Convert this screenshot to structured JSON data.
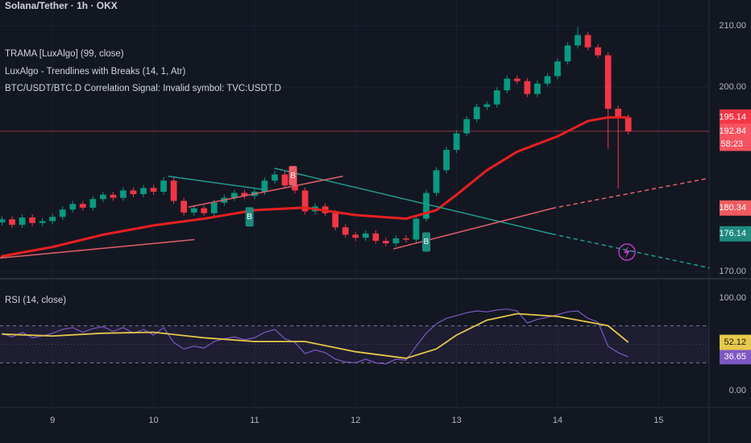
{
  "chart_data": [
    {
      "type": "candlestick",
      "title": "Solana/Tether · 1h · OKX",
      "indicators": [
        "TRAMA [LuxAlgo] (99, close)",
        "LuxAlgo - Trendlines with Breaks (14, 1, Atr)",
        "BTC/USDT/BTC.D Correlation Signal: Invalid symbol: TVC:USDT.D"
      ],
      "x": [
        8.5,
        8.6,
        8.7,
        8.8,
        8.9,
        9.0,
        9.1,
        9.2,
        9.3,
        9.4,
        9.5,
        9.6,
        9.7,
        9.8,
        9.9,
        10.0,
        10.1,
        10.2,
        10.3,
        10.4,
        10.5,
        10.6,
        10.7,
        10.8,
        10.9,
        11.0,
        11.1,
        11.2,
        11.3,
        11.4,
        11.5,
        11.6,
        11.7,
        11.8,
        11.9,
        12.0,
        12.1,
        12.2,
        12.3,
        12.4,
        12.5,
        12.6,
        12.7,
        12.8,
        12.9,
        13.0,
        13.1,
        13.2,
        13.3,
        13.4,
        13.5,
        13.6,
        13.7,
        13.8,
        13.9,
        14.0,
        14.1,
        14.2,
        14.3,
        14.4,
        14.5,
        14.6,
        14.7
      ],
      "open": [
        178.0,
        178.5,
        177.6,
        178.8,
        177.9,
        178.2,
        178.9,
        180.1,
        181.0,
        180.4,
        181.8,
        182.5,
        182.0,
        183.2,
        182.6,
        183.6,
        183.0,
        184.8,
        181.5,
        179.6,
        180.3,
        179.5,
        181.2,
        182.0,
        182.8,
        182.3,
        183.0,
        184.8,
        185.8,
        184.0,
        183.2,
        179.8,
        180.6,
        179.5,
        177.2,
        176.0,
        175.5,
        176.2,
        175.0,
        174.6,
        175.4,
        175.2,
        178.6,
        182.8,
        186.5,
        189.8,
        192.5,
        194.8,
        196.8,
        197.2,
        199.5,
        201.4,
        201.0,
        198.9,
        200.6,
        201.8,
        204.2,
        206.8,
        208.5,
        206.5,
        205.2,
        196.5,
        195.1
      ],
      "high": [
        179.0,
        179.0,
        179.3,
        179.3,
        178.7,
        179.4,
        180.6,
        181.5,
        181.5,
        182.3,
        183.0,
        183.0,
        183.7,
        183.7,
        184.1,
        184.1,
        185.4,
        185.3,
        182.0,
        180.8,
        180.8,
        181.7,
        182.5,
        183.3,
        183.3,
        183.5,
        185.3,
        186.4,
        186.3,
        184.5,
        183.7,
        181.1,
        181.1,
        180.0,
        177.7,
        176.5,
        176.7,
        176.7,
        175.5,
        175.9,
        175.9,
        179.1,
        183.3,
        187.0,
        190.3,
        193.0,
        195.3,
        197.3,
        197.7,
        200.0,
        201.9,
        201.9,
        201.5,
        201.1,
        202.3,
        204.7,
        207.3,
        209.8,
        209.0,
        207.0,
        205.7,
        197.0,
        195.6
      ],
      "low": [
        177.5,
        177.1,
        177.1,
        177.4,
        177.4,
        177.7,
        178.4,
        179.6,
        179.9,
        179.9,
        181.3,
        181.5,
        181.5,
        182.1,
        182.1,
        182.5,
        182.5,
        181.0,
        179.1,
        179.1,
        179.0,
        179.0,
        180.7,
        181.5,
        181.8,
        181.8,
        182.5,
        184.3,
        183.5,
        182.7,
        179.3,
        179.3,
        179.0,
        176.7,
        175.5,
        175.0,
        175.0,
        174.5,
        174.1,
        174.1,
        174.7,
        174.7,
        178.1,
        182.3,
        186.0,
        189.3,
        192.0,
        194.3,
        196.3,
        196.7,
        199.0,
        200.5,
        198.4,
        198.4,
        200.1,
        201.3,
        203.7,
        206.3,
        206.0,
        204.7,
        190.0,
        183.5,
        192.3
      ],
      "close": [
        178.5,
        177.6,
        178.8,
        177.9,
        178.2,
        178.9,
        180.1,
        181.0,
        180.4,
        181.8,
        182.5,
        182.0,
        183.2,
        182.6,
        183.6,
        183.0,
        184.8,
        181.5,
        179.6,
        180.3,
        179.5,
        181.2,
        182.0,
        182.8,
        182.3,
        183.0,
        184.8,
        185.8,
        184.0,
        183.2,
        179.8,
        180.6,
        179.5,
        177.2,
        176.0,
        175.5,
        176.2,
        175.0,
        174.6,
        175.4,
        175.2,
        178.6,
        182.8,
        186.5,
        189.8,
        192.5,
        194.8,
        196.8,
        197.2,
        199.5,
        201.4,
        201.0,
        198.9,
        200.6,
        201.8,
        204.2,
        206.8,
        208.5,
        206.5,
        205.2,
        196.5,
        195.1,
        192.8
      ],
      "up_color": "#089981",
      "down_color": "#f23645",
      "lines": [
        {
          "x": [
            8.5,
            9.0,
            9.5,
            10.0,
            10.5,
            11.0,
            11.5,
            12.0,
            12.5,
            12.8,
            13.0,
            13.3,
            13.6,
            14.0,
            14.3,
            14.5,
            14.7
          ],
          "values": [
            172.5,
            174.0,
            176.0,
            177.5,
            178.6,
            180.0,
            180.4,
            179.2,
            178.6,
            180.0,
            182.5,
            186.5,
            189.5,
            192.0,
            194.5,
            195.1,
            195.1
          ],
          "color": "#e8201f",
          "width": 3,
          "dashed": false
        },
        {
          "x": [
            10.15,
            11.12
          ],
          "values": [
            185.5,
            183.3
          ],
          "color": "#1f9c8c",
          "width": 1.5,
          "dashed": false
        },
        {
          "x": [
            11.2,
            13.95
          ],
          "values": [
            186.8,
            176.1
          ],
          "color": "#1f9c8c",
          "width": 1.5,
          "dashed": false
        },
        {
          "x": [
            13.95,
            15.5
          ],
          "values": [
            176.1,
            170.6
          ],
          "color": "#1f9c8c",
          "width": 1.5,
          "dashed": true
        },
        {
          "x": [
            8.48,
            10.4
          ],
          "values": [
            172.2,
            175.2
          ],
          "color": "#e0606a",
          "width": 1.5,
          "dashed": false
        },
        {
          "x": [
            10.35,
            11.87
          ],
          "values": [
            180.5,
            185.5
          ],
          "color": "#e0606a",
          "width": 1.5,
          "dashed": false
        },
        {
          "x": [
            12.38,
            13.95
          ],
          "values": [
            173.7,
            180.3
          ],
          "color": "#e0606a",
          "width": 1.5,
          "dashed": false
        },
        {
          "x": [
            13.95,
            15.5
          ],
          "values": [
            180.3,
            185.2
          ],
          "color": "#e0606a",
          "width": 1.5,
          "dashed": true
        }
      ],
      "break_labels": [
        {
          "x": 10.95,
          "value": 178.9,
          "text": "B",
          "color": "#1f8a7e"
        },
        {
          "x": 11.38,
          "value": 185.6,
          "text": "B",
          "color": "#f05a5f"
        },
        {
          "x": 12.7,
          "value": 174.8,
          "text": "B",
          "color": "#1f8a7e"
        }
      ],
      "price_labels": [
        {
          "value": 195.14,
          "label": "195.14",
          "color": "#f23645",
          "text_color": "#ffffff"
        },
        {
          "value": 192.84,
          "label": "192.84",
          "countdown": "58:23",
          "color": "#f7525f",
          "text_color": "#ffffff",
          "price_line": true
        },
        {
          "value": 180.34,
          "label": "180.34",
          "color": "#f05a5f",
          "text_color": "#ffffff"
        },
        {
          "value": 176.14,
          "label": "176.14",
          "color": "#1f8a7e",
          "text_color": "#ffffff"
        }
      ],
      "xlim": [
        8.48,
        15.5
      ],
      "ylim": [
        169.1,
        214.2
      ],
      "xticks": [
        9,
        10,
        11,
        12,
        13,
        14,
        15
      ],
      "yticks": [
        {
          "value": 170,
          "label": "170.00"
        },
        {
          "value": 200,
          "label": "200.00"
        },
        {
          "value": 210,
          "label": "210.00"
        }
      ],
      "grid": true
    },
    {
      "type": "rsi",
      "title": "RSI (14, close)",
      "x": [
        8.5,
        8.6,
        8.7,
        8.8,
        8.9,
        9.0,
        9.1,
        9.2,
        9.3,
        9.4,
        9.5,
        9.6,
        9.7,
        9.8,
        9.9,
        10.0,
        10.1,
        10.2,
        10.3,
        10.4,
        10.5,
        10.6,
        10.7,
        10.8,
        10.9,
        11.0,
        11.1,
        11.2,
        11.3,
        11.4,
        11.5,
        11.6,
        11.7,
        11.8,
        11.9,
        12.0,
        12.1,
        12.2,
        12.3,
        12.4,
        12.5,
        12.6,
        12.7,
        12.8,
        12.9,
        13.0,
        13.1,
        13.2,
        13.3,
        13.4,
        13.5,
        13.6,
        13.7,
        13.8,
        13.9,
        14.0,
        14.1,
        14.2,
        14.3,
        14.4,
        14.5,
        14.6,
        14.7
      ],
      "series": [
        {
          "values": [
            62,
            58,
            63,
            57,
            59,
            62,
            66,
            68,
            63,
            67,
            69,
            64,
            68,
            62,
            66,
            60,
            68,
            52,
            45,
            48,
            46,
            53,
            56,
            58,
            55,
            57,
            63,
            66,
            56,
            52,
            40,
            44,
            41,
            34,
            31,
            30,
            34,
            30,
            29,
            34,
            33,
            48,
            62,
            72,
            78,
            81,
            84,
            86,
            85,
            87,
            88,
            86,
            73,
            77,
            79,
            82,
            85,
            86,
            78,
            74,
            48,
            41,
            36.65
          ],
          "color": "#7e57c2",
          "last_label": "36.65"
        }
      ],
      "ma": {
        "x": [
          8.5,
          9.0,
          9.5,
          10.0,
          10.5,
          11.0,
          11.5,
          12.0,
          12.5,
          12.8,
          13.0,
          13.3,
          13.6,
          14.0,
          14.3,
          14.5,
          14.7
        ],
        "values": [
          61,
          59,
          62,
          63,
          57,
          53,
          53,
          42,
          35,
          45,
          60,
          76,
          83,
          80,
          74,
          70,
          52.12
        ],
        "color": "#e6c84a",
        "last_label": "52.12"
      },
      "bands": [
        30,
        70
      ],
      "midline": 50,
      "ylim": [
        -17.3,
        119
      ],
      "yticks": [
        {
          "value": 0,
          "label": "0.00"
        },
        {
          "value": 100,
          "label": "100.00"
        }
      ]
    }
  ]
}
